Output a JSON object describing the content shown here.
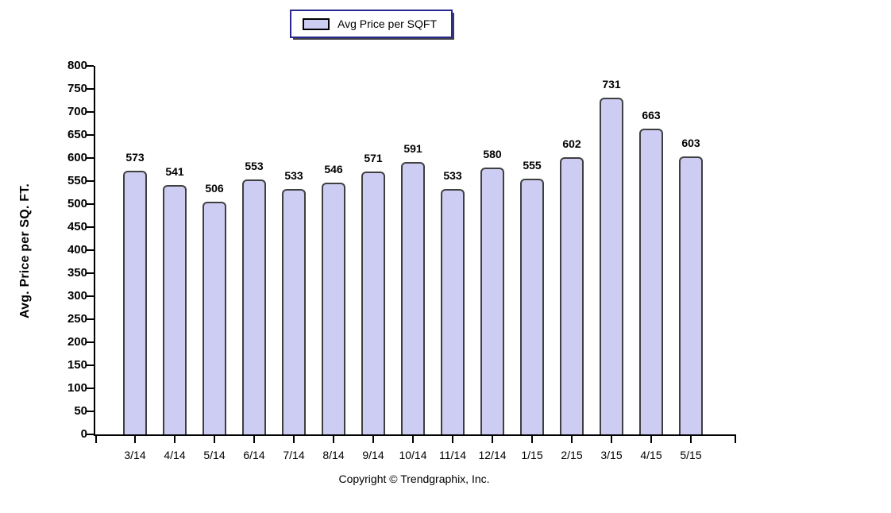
{
  "legend": {
    "label": "Avg Price per SQFT"
  },
  "chart_data": {
    "type": "bar",
    "title": "",
    "xlabel": "",
    "ylabel": "Avg. Price per SQ. FT.",
    "categories": [
      "3/14",
      "4/14",
      "5/14",
      "6/14",
      "7/14",
      "8/14",
      "9/14",
      "10/14",
      "11/14",
      "12/14",
      "1/15",
      "2/15",
      "3/15",
      "4/15",
      "5/15"
    ],
    "values": [
      573,
      541,
      506,
      553,
      533,
      546,
      571,
      591,
      533,
      580,
      555,
      602,
      731,
      663,
      603
    ],
    "series_name": "Avg Price per SQFT",
    "ylim": [
      0,
      800
    ],
    "ytick_step": 50,
    "grid": false,
    "legend_position": "top-center",
    "bar_fill": "#CDCDF3",
    "bar_border": "#3F3F3F",
    "axis_color": "#000000",
    "legend_border_color": "#28288F"
  },
  "footer": {
    "copyright": "Copyright © Trendgraphix, Inc."
  }
}
